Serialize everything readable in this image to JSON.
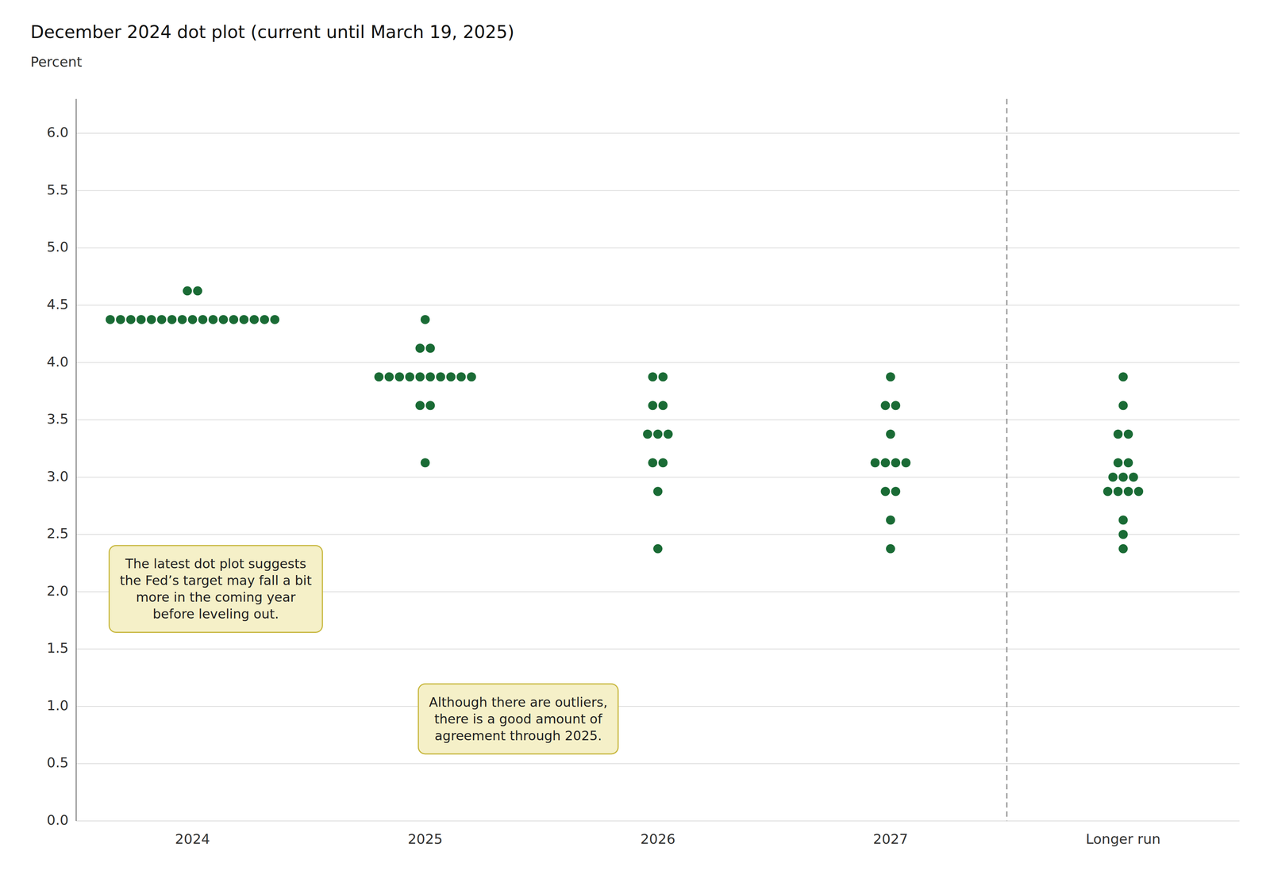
{
  "chart_data": {
    "type": "dot",
    "title": "December 2024 dot plot (current until March 19, 2025)",
    "ylabel": "Percent",
    "categories": [
      "2024",
      "2025",
      "2026",
      "2027",
      "Longer run"
    ],
    "values": [
      [
        4.375,
        4.375,
        4.375,
        4.375,
        4.375,
        4.375,
        4.375,
        4.375,
        4.375,
        4.375,
        4.375,
        4.375,
        4.375,
        4.375,
        4.375,
        4.375,
        4.375,
        4.625,
        4.625
      ],
      [
        3.125,
        3.625,
        3.625,
        3.875,
        3.875,
        3.875,
        3.875,
        3.875,
        3.875,
        3.875,
        3.875,
        3.875,
        3.875,
        4.125,
        4.125,
        4.375
      ],
      [
        2.375,
        2.875,
        3.125,
        3.125,
        3.375,
        3.375,
        3.375,
        3.625,
        3.625,
        3.875,
        3.875
      ],
      [
        2.375,
        2.625,
        2.875,
        2.875,
        3.125,
        3.125,
        3.125,
        3.125,
        3.375,
        3.625,
        3.625,
        3.875
      ],
      [
        2.375,
        2.5,
        2.625,
        2.875,
        2.875,
        2.875,
        2.875,
        3.0,
        3.0,
        3.0,
        3.125,
        3.125,
        3.375,
        3.375,
        3.625,
        3.875
      ]
    ],
    "color": "#1a6b35",
    "ylim": [
      0.0,
      6.3
    ],
    "yticks": [
      {
        "value": 0,
        "label": "0.0"
      },
      0.5,
      {
        "value": 1,
        "label": "1.0"
      },
      1.5,
      {
        "value": 2,
        "label": "2.0"
      },
      2.5,
      {
        "value": 3,
        "label": "3.0"
      },
      3.5,
      {
        "value": 4,
        "label": "4.0"
      },
      4.5,
      {
        "value": 5,
        "label": "5.0"
      },
      5.5,
      {
        "value": 6,
        "label": "6.0"
      }
    ],
    "grid": true,
    "annotations": [
      "The latest dot plot suggests\nthe Fed’s target may fall a bit\nmore in the coming year\nbefore leveling out.",
      "Although there are outliers,\nthere is a good amount of\nagreement through 2025."
    ]
  }
}
